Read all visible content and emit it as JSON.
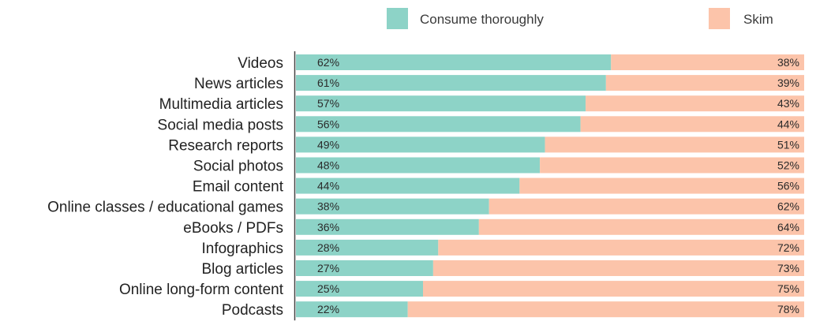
{
  "chart_data": {
    "type": "bar",
    "orientation": "horizontal",
    "stacked": true,
    "normalized_to_percent": true,
    "categories": [
      "Videos",
      "News articles",
      "Multimedia articles",
      "Social media posts",
      "Research reports",
      "Social photos",
      "Email content",
      "Online classes / educational games",
      "eBooks / PDFs",
      "Infographics",
      "Blog articles",
      "Online long-form content",
      "Podcasts"
    ],
    "series": [
      {
        "name": "Consume thoroughly",
        "color": "#8dd3c7",
        "values": [
          62,
          61,
          57,
          56,
          49,
          48,
          44,
          38,
          36,
          28,
          27,
          25,
          22
        ],
        "labels": [
          "62%",
          "61%",
          "57%",
          "56%",
          "49%",
          "48%",
          "44%",
          "38%",
          "36%",
          "28%",
          "27%",
          "25%",
          "22%"
        ]
      },
      {
        "name": "Skim",
        "color": "#fcc4aa",
        "values": [
          38,
          39,
          43,
          44,
          51,
          52,
          56,
          62,
          64,
          72,
          73,
          75,
          78
        ],
        "labels": [
          "38%",
          "39%",
          "43%",
          "44%",
          "51%",
          "52%",
          "56%",
          "62%",
          "64%",
          "72%",
          "73%",
          "75%",
          "78%"
        ]
      }
    ],
    "xlim": [
      0,
      100
    ],
    "legend_position": "top",
    "grid": false,
    "title": "",
    "xlabel": "",
    "ylabel": ""
  }
}
